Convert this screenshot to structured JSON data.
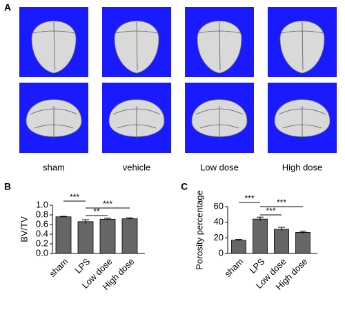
{
  "panel_a": {
    "label": "A",
    "captions": [
      "sham",
      "vehicle",
      "Low dose",
      "High dose"
    ]
  },
  "chart_data": [
    {
      "type": "bar",
      "label": "B",
      "ylabel": "BV/TV",
      "categories": [
        "sham",
        "LPS",
        "Low dose",
        "High dose"
      ],
      "values": [
        0.76,
        0.66,
        0.71,
        0.72
      ],
      "errors": [
        0.01,
        0.04,
        0.02,
        0.02
      ],
      "color": "#666666",
      "ylim": [
        0,
        1.0
      ],
      "yticks": [
        {
          "value": 0,
          "label": "0.0"
        },
        0.2,
        0.4,
        0.6,
        0.8,
        {
          "value": 1.0,
          "label": "1.0"
        }
      ],
      "annotations": [
        "***",
        "**",
        "***"
      ]
    },
    {
      "type": "bar",
      "label": "C",
      "ylabel": "Porosity percentage",
      "categories": [
        "sham",
        "LPS",
        "Low dose",
        "High dose"
      ],
      "values": [
        17,
        44,
        31,
        27
      ],
      "errors": [
        1,
        2.5,
        2.5,
        1.5
      ],
      "color": "#666666",
      "ylim": [
        0,
        60
      ],
      "yticks": [
        0,
        20,
        40,
        60
      ],
      "annotations": [
        "***",
        "***",
        "***"
      ]
    }
  ]
}
